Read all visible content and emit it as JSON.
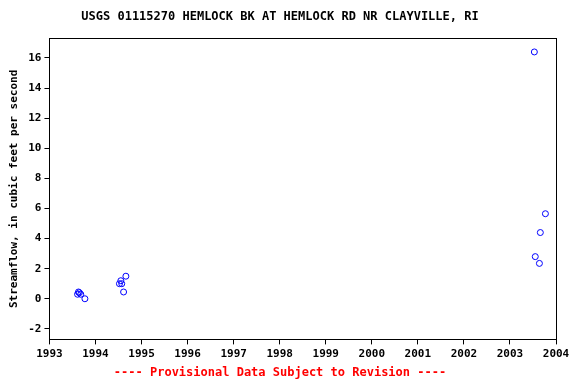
{
  "chart_data": {
    "type": "scatter",
    "title": "USGS 01115270 HEMLOCK BK AT HEMLOCK RD NR CLAYVILLE, RI",
    "subtitle": "---- Provisional Data Subject to Revision ----",
    "y_label": "Streamflow, in cubic feet per second",
    "x": [
      1993.61,
      1993.63,
      1993.65,
      1993.68,
      1993.77,
      1994.52,
      1994.55,
      1994.57,
      1994.61,
      1994.66,
      2003.53,
      2003.55,
      2003.64,
      2003.66,
      2003.77
    ],
    "values": [
      0.3,
      0.45,
      0.4,
      0.3,
      0.0,
      1.0,
      1.2,
      1.0,
      0.45,
      1.5,
      16.4,
      2.8,
      2.35,
      4.4,
      5.65
    ],
    "color": "#0000ff",
    "marker": "circle",
    "xlim": [
      1993,
      2004
    ],
    "xticks": [
      1993,
      1994,
      1995,
      1996,
      1997,
      1998,
      1999,
      2000,
      2001,
      2002,
      2003,
      2004
    ],
    "ylim": [
      -2.7,
      17.3
    ],
    "yticks": [
      -2,
      0,
      2,
      4,
      6,
      8,
      10,
      12,
      14,
      16
    ],
    "grid": false
  }
}
